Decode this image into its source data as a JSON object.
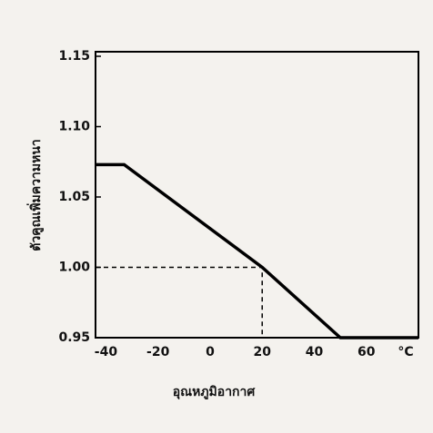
{
  "chart_data": {
    "type": "line",
    "x_label": "อุณหภูมิอากาศ",
    "y_label": "ตัวคูณเพิ่มความหนา",
    "x_unit": "°C",
    "series": [
      {
        "name": "ตัวคูณเพิ่มความหนา",
        "color": "#000000",
        "x": [
          -44,
          -33,
          20,
          50,
          80
        ],
        "values": [
          1.073,
          1.073,
          1.0,
          0.95,
          0.95
        ]
      }
    ],
    "guide": {
      "x": 20,
      "y": 1.0
    },
    "xlim": [
      -44,
      80
    ],
    "xticks": [
      -40,
      -20,
      0,
      20,
      40,
      60
    ],
    "ylim": [
      0.95,
      1.15
    ],
    "yticks": [
      {
        "value": 0.95,
        "label": "0.95"
      },
      {
        "value": 1.0,
        "label": "1.00"
      },
      {
        "value": 1.05,
        "label": "1.05"
      },
      {
        "value": 1.1,
        "label": "1.10"
      },
      {
        "value": 1.15,
        "label": "1.15"
      }
    ]
  }
}
